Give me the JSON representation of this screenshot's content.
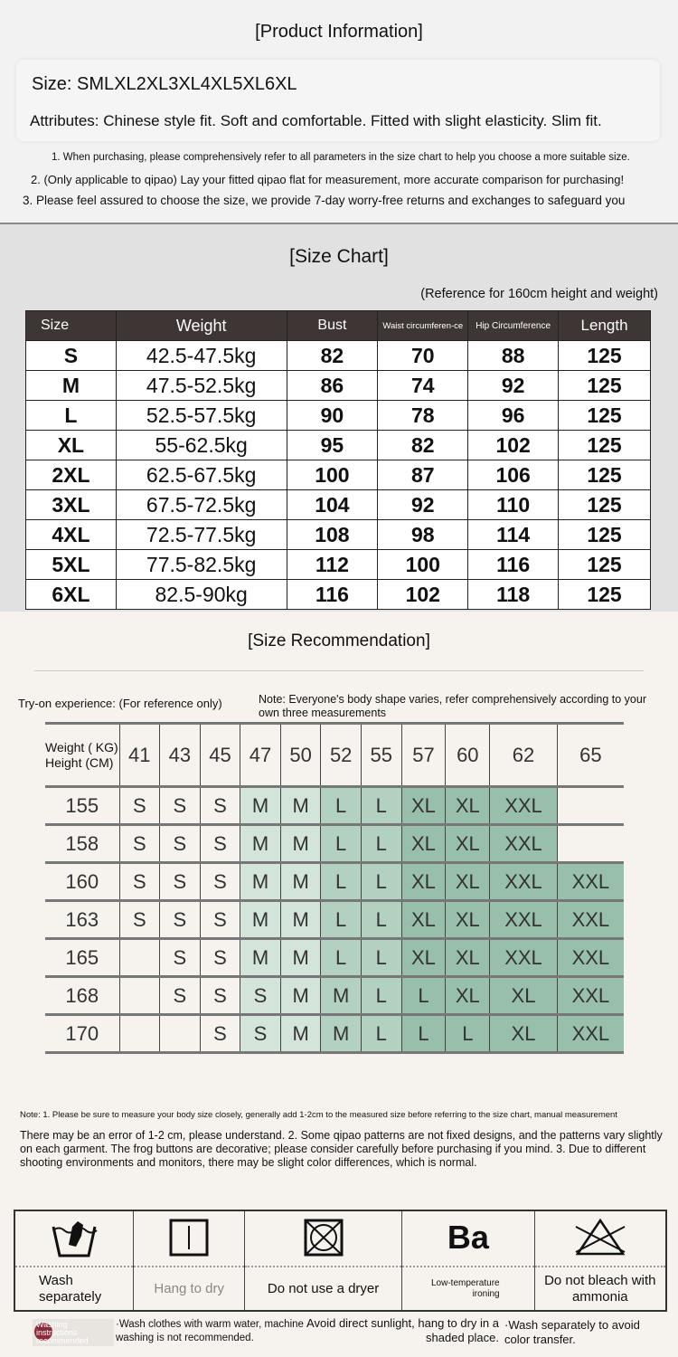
{
  "product": {
    "title": "[Product Information]",
    "size_line": "Size: SMLXL2XL3XL4XL5XL6XL",
    "attributes": "Attributes: Chinese style fit. Soft and comfortable. Fitted with slight elasticity. Slim fit.",
    "notes": [
      "1. When purchasing, please comprehensively refer to all parameters in the size chart to help you choose a more suitable size.",
      "2. (Only applicable to qipao) Lay your fitted qipao flat for measurement, more accurate comparison for purchasing!",
      "3. Please feel assured to choose the size, we provide 7-day worry-free returns and exchanges to safeguard you"
    ]
  },
  "size_chart": {
    "title": "[Size Chart]",
    "reference": "(Reference for 160cm height and weight)",
    "headers": [
      "Size",
      "Weight",
      "Bust",
      "Waist circumferen-ce",
      "Hip Circumference",
      "Length"
    ],
    "rows": [
      [
        "S",
        "42.5-47.5kg",
        "82",
        "70",
        "88",
        "125"
      ],
      [
        "M",
        "47.5-52.5kg",
        "86",
        "74",
        "92",
        "125"
      ],
      [
        "L",
        "52.5-57.5kg",
        "90",
        "78",
        "96",
        "125"
      ],
      [
        "XL",
        "55-62.5kg",
        "95",
        "82",
        "102",
        "125"
      ],
      [
        "2XL",
        "62.5-67.5kg",
        "100",
        "87",
        "106",
        "125"
      ],
      [
        "3XL",
        "67.5-72.5kg",
        "104",
        "92",
        "110",
        "125"
      ],
      [
        "4XL",
        "72.5-77.5kg",
        "108",
        "98",
        "114",
        "125"
      ],
      [
        "5XL",
        "77.5-82.5kg",
        "112",
        "100",
        "116",
        "125"
      ],
      [
        "6XL",
        "82.5-90kg",
        "116",
        "102",
        "118",
        "125"
      ]
    ]
  },
  "recommendation": {
    "title": "[Size Recommendation]",
    "tryon": "Try-on experience: (For reference only)",
    "note": "Note: Everyone's body shape varies, refer comprehensively according to your own three measurements",
    "corner": "Weight ( KG) Height (CM)",
    "weights": [
      "41",
      "43",
      "45",
      "47",
      "50",
      "52",
      "55",
      "57",
      "60",
      "62",
      "65"
    ],
    "rows": [
      {
        "height": "155",
        "sizes": [
          "S",
          "S",
          "S",
          "M",
          "M",
          "L",
          "L",
          "XL",
          "XL",
          "XXL",
          ""
        ]
      },
      {
        "height": "158",
        "sizes": [
          "S",
          "S",
          "S",
          "M",
          "M",
          "L",
          "L",
          "XL",
          "XL",
          "XXL",
          ""
        ]
      },
      {
        "height": "160",
        "sizes": [
          "S",
          "S",
          "S",
          "M",
          "M",
          "L",
          "L",
          "XL",
          "XL",
          "XXL",
          "XXL"
        ]
      },
      {
        "height": "163",
        "sizes": [
          "S",
          "S",
          "S",
          "M",
          "M",
          "L",
          "L",
          "XL",
          "XL",
          "XXL",
          "XXL"
        ]
      },
      {
        "height": "165",
        "sizes": [
          "",
          "S",
          "S",
          "M",
          "M",
          "L",
          "L",
          "XL",
          "XL",
          "XXL",
          "XXL"
        ]
      },
      {
        "height": "168",
        "sizes": [
          "",
          "S",
          "S",
          "S",
          "M",
          "M",
          "L",
          "L",
          "XL",
          "XL",
          "XXL"
        ]
      },
      {
        "height": "170",
        "sizes": [
          "",
          "",
          "S",
          "S",
          "M",
          "M",
          "L",
          "L",
          "L",
          "XL",
          "XXL"
        ]
      }
    ],
    "shade_colors": [
      "#d3e4da",
      "#b3d1c1",
      "#98bfab"
    ]
  },
  "notes": {
    "line1": "Note: 1. Please be sure to measure your body size closely, generally add 1-2cm to the measured size before referring to the size chart, manual measurement",
    "line2": "There may be an error of 1-2 cm, please understand. 2. Some qipao patterns are not fixed designs, and the patterns vary slightly on each garment. The frog buttons are decorative; please consider carefully before purchasing if you mind. 3. Due to different shooting environments and monitors, there may be slight color differences, which is normal."
  },
  "care": {
    "items": [
      {
        "icon": "hand-wash-icon",
        "label": "Wash separately"
      },
      {
        "icon": "hang-dry-icon",
        "label": "Hang to dry"
      },
      {
        "icon": "no-dryer-icon",
        "label": "Do not use a dryer"
      },
      {
        "icon": "low-temp-iron-icon",
        "symbol": "Ba",
        "label": "Low-temperature ironing"
      },
      {
        "icon": "no-bleach-icon",
        "label": "Do not bleach with ammonia"
      }
    ],
    "badge": "Washing instructions recommended",
    "tip1": "·Wash clothes with warm water, machine washing is not recommended.",
    "tip2": "Avoid direct sunlight, hang to dry in a shaded place.",
    "tip3": "·Wash separately to avoid color transfer."
  }
}
